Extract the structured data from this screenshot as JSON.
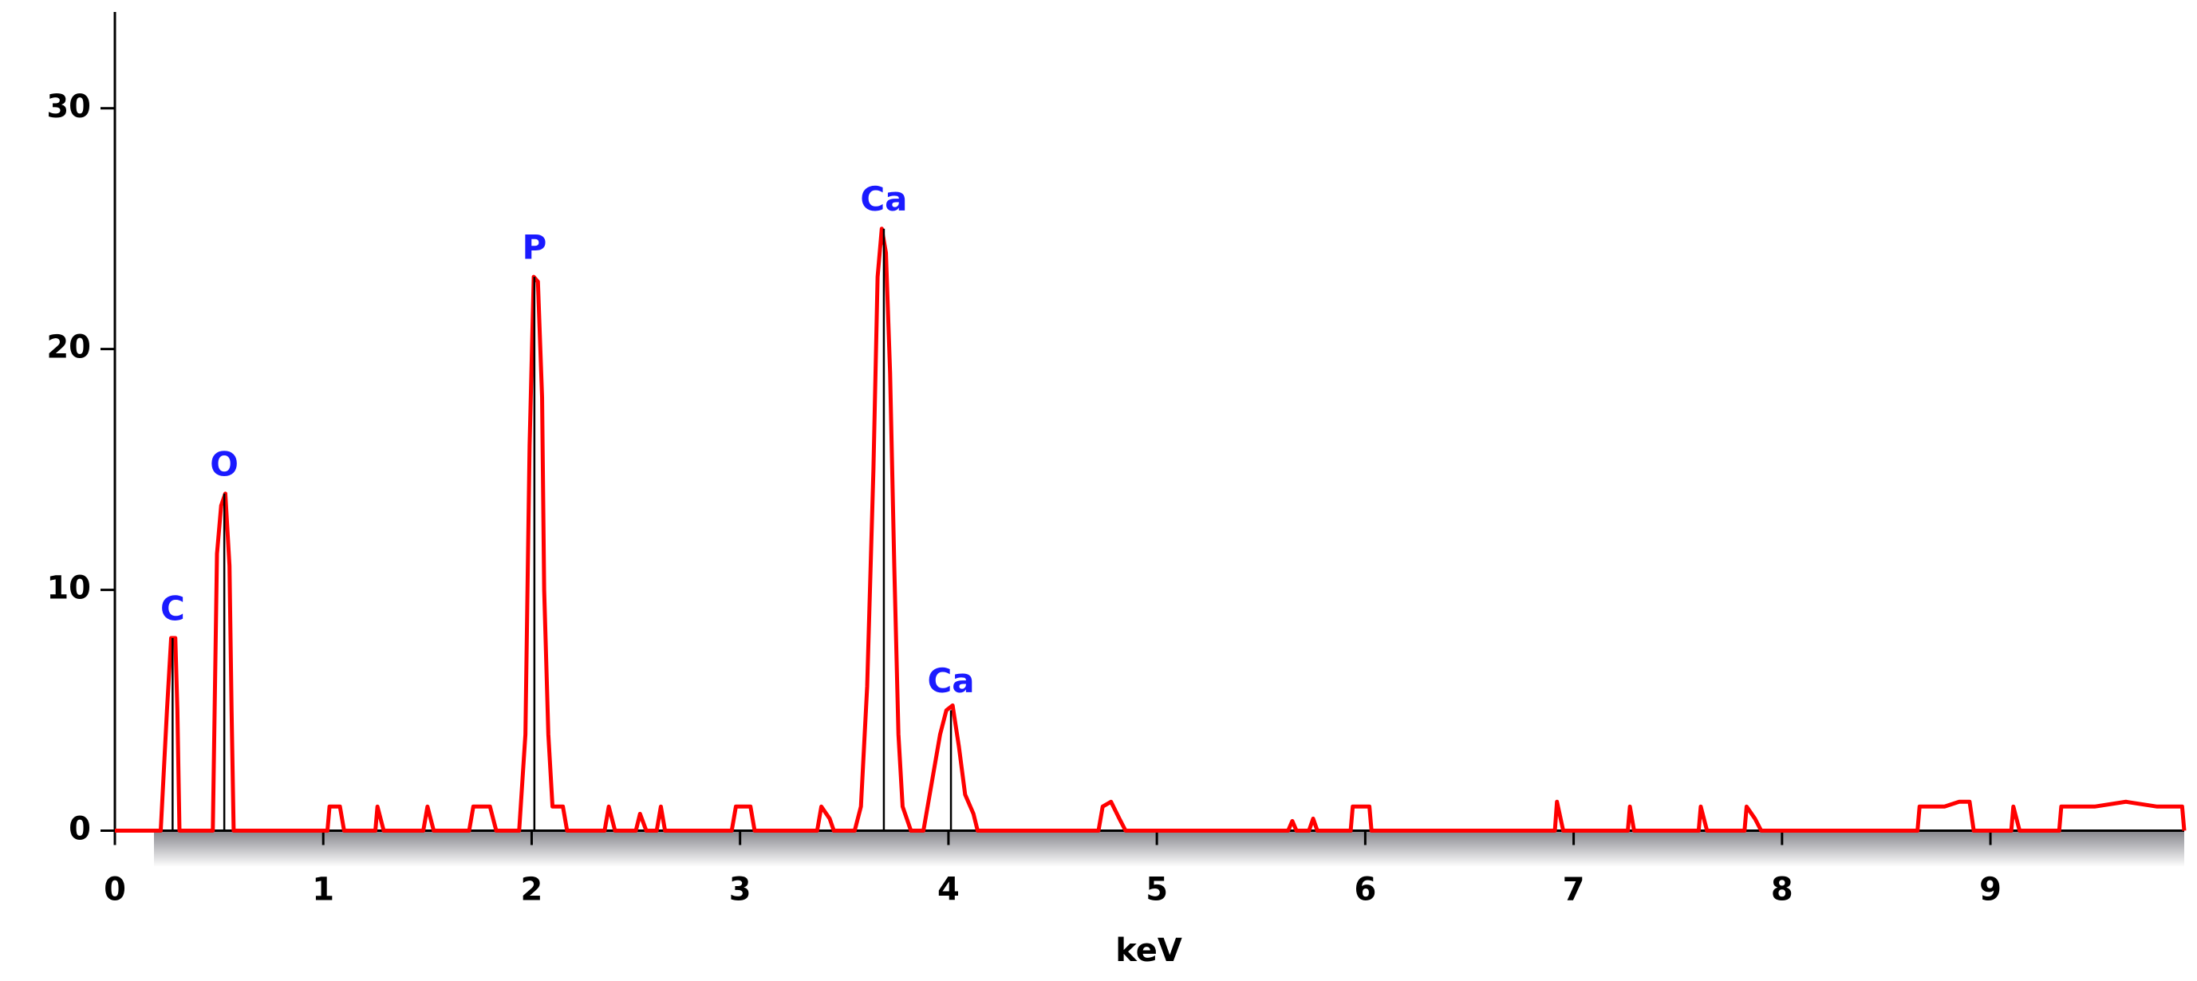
{
  "chart_data": {
    "type": "line",
    "x_label": "keV",
    "xlim": [
      0,
      9.93
    ],
    "ylim": [
      0,
      34
    ],
    "xticks": [
      0,
      1,
      2,
      3,
      4,
      5,
      6,
      7,
      8,
      9
    ],
    "yticks": [
      0,
      10,
      20,
      30
    ],
    "x": [
      0,
      0.22,
      0.25,
      0.27,
      0.29,
      0.3,
      0.31,
      0.47,
      0.49,
      0.51,
      0.53,
      0.55,
      0.56,
      0.57,
      1.02,
      1.03,
      1.08,
      1.1,
      1.25,
      1.26,
      1.29,
      1.48,
      1.5,
      1.53,
      1.7,
      1.72,
      1.8,
      1.83,
      1.94,
      1.97,
      1.99,
      2.01,
      2.03,
      2.05,
      2.06,
      2.08,
      2.1,
      2.15,
      2.17,
      2.35,
      2.37,
      2.4,
      2.5,
      2.52,
      2.55,
      2.6,
      2.62,
      2.64,
      2.96,
      2.98,
      3.05,
      3.07,
      3.37,
      3.39,
      3.43,
      3.45,
      3.55,
      3.58,
      3.61,
      3.64,
      3.66,
      3.68,
      3.7,
      3.72,
      3.74,
      3.76,
      3.78,
      3.82,
      3.88,
      3.92,
      3.96,
      3.99,
      4.02,
      4.05,
      4.08,
      4.12,
      4.14,
      4.72,
      4.74,
      4.78,
      4.82,
      4.85,
      5.63,
      5.65,
      5.67,
      5.73,
      5.75,
      5.77,
      5.93,
      5.94,
      6.02,
      6.03,
      6.91,
      6.92,
      6.95,
      7.26,
      7.27,
      7.29,
      7.6,
      7.61,
      7.64,
      7.82,
      7.83,
      7.87,
      7.9,
      8.65,
      8.66,
      8.72,
      8.78,
      8.85,
      8.9,
      8.92,
      9.1,
      9.11,
      9.14,
      9.33,
      9.34,
      9.5,
      9.65,
      9.8,
      9.92,
      9.93
    ],
    "series": [
      {
        "color": "#ff0000",
        "values": [
          0,
          0,
          5,
          8,
          8,
          5,
          0,
          0,
          11.5,
          13.5,
          14,
          11,
          5,
          0,
          0,
          1,
          1,
          0,
          0,
          1,
          0,
          0,
          1,
          0,
          0,
          1,
          1,
          0,
          0,
          4,
          16,
          23,
          22.8,
          18,
          10,
          4,
          1,
          1,
          0,
          0,
          1,
          0,
          0,
          0.7,
          0,
          0,
          1,
          0,
          0,
          1,
          1,
          0,
          0,
          1,
          0.5,
          0,
          0,
          1,
          6,
          15,
          23,
          25,
          24,
          19,
          11,
          4,
          1,
          0,
          0,
          2,
          4,
          5,
          5.2,
          3.5,
          1.5,
          0.7,
          0,
          0,
          1,
          1.2,
          0.5,
          0,
          0,
          0.4,
          0,
          0,
          0.5,
          0,
          0,
          1,
          1,
          0,
          0,
          1.2,
          0,
          0,
          1,
          0,
          0,
          1,
          0,
          0,
          1,
          0.5,
          0,
          0,
          1,
          1,
          1,
          1.2,
          1.2,
          0,
          0,
          1,
          0,
          0,
          1,
          1,
          1.2,
          1,
          1,
          0
        ]
      }
    ],
    "peaks": [
      {
        "label": "C",
        "x": 0.277,
        "y": 8
      },
      {
        "label": "O",
        "x": 0.525,
        "y": 14
      },
      {
        "label": "P",
        "x": 2.013,
        "y": 23
      },
      {
        "label": "Ca",
        "x": 3.69,
        "y": 25
      },
      {
        "label": "Ca",
        "x": 4.012,
        "y": 5
      }
    ]
  }
}
